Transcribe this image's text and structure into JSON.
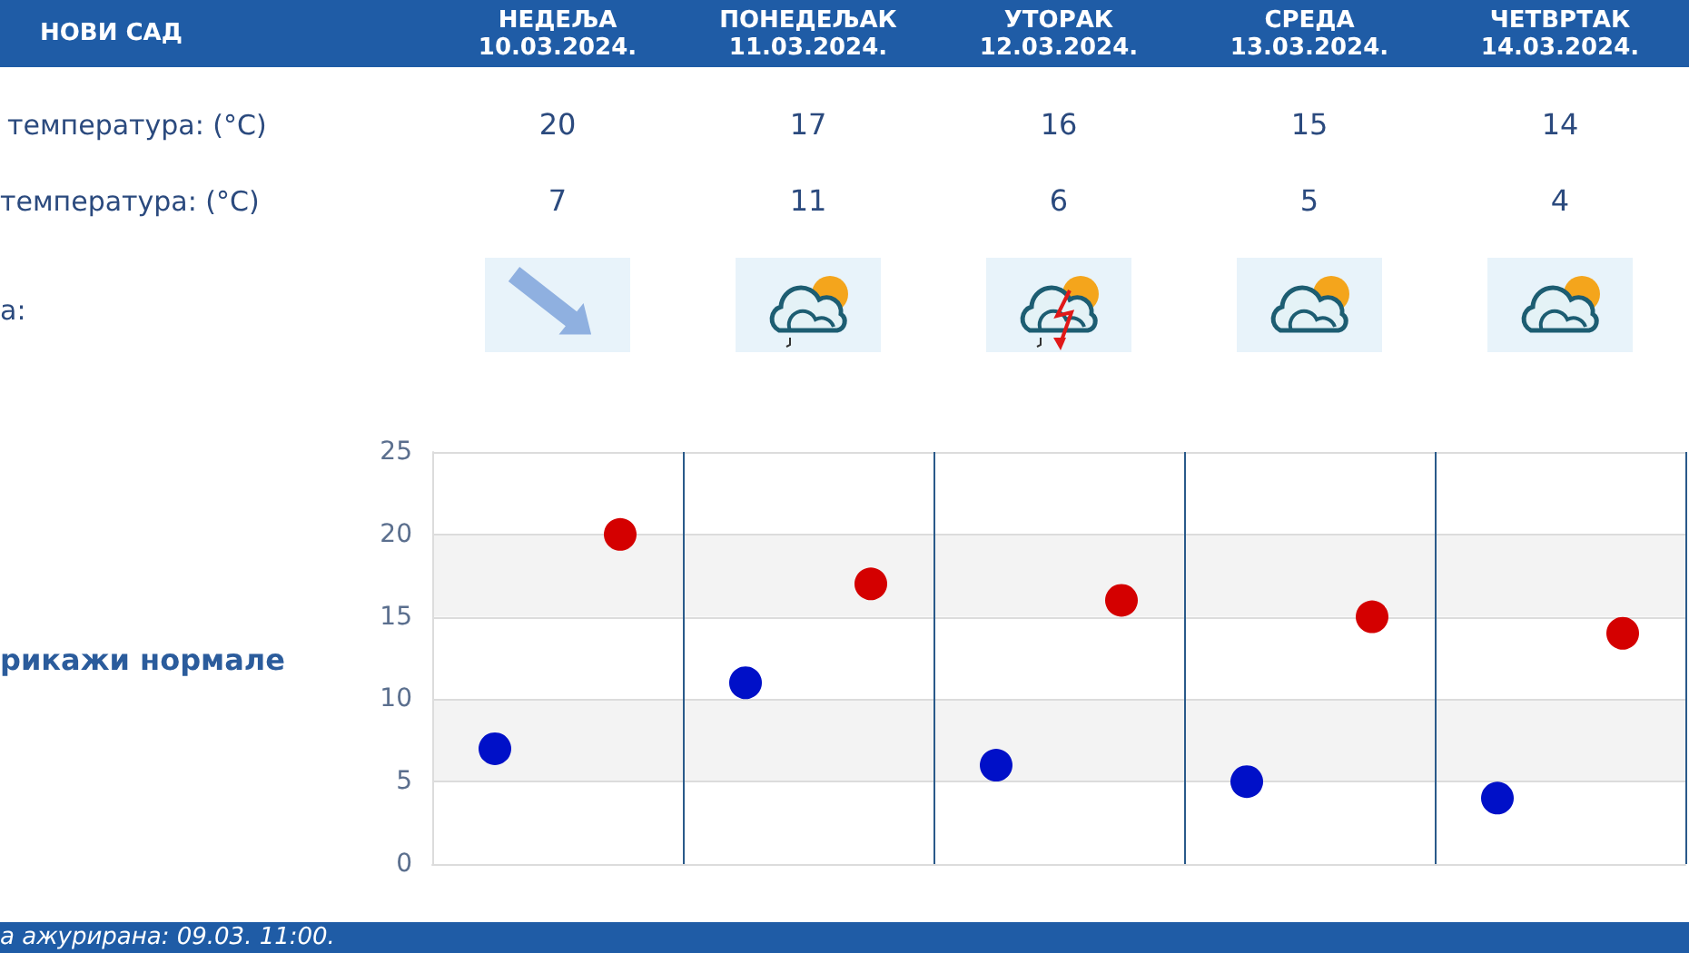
{
  "chart_data": {
    "type": "scatter",
    "title": "НОВИ САД",
    "categories": [
      null,
      null,
      null,
      null,
      null
    ],
    "series": [
      {
        "color": "#d40000",
        "values": [
          20,
          17,
          16,
          15,
          14
        ]
      },
      {
        "color": "#0010c8",
        "values": [
          7,
          11,
          6,
          5,
          4
        ]
      }
    ],
    "ylim": [
      0,
      25
    ],
    "yticks": [
      0,
      5,
      10,
      15,
      20,
      25
    ],
    "grid": true,
    "marker": "circle",
    "data_labels": true,
    "annotations": [
      "НЕДЕЉА\n10.03.2024.",
      "ПОНЕДЕЉАК\n11.03.2024.",
      "УТОРАК\n12.03.2024.",
      "СРЕДА\n13.03.2024.",
      "ЧЕТВРТАК\n14.03.2024.",
      "температура: (°C)",
      "температура: (°C)",
      "а:",
      "рикажи нормале",
      "а ажурирана: 09.03. 11:00."
    ]
  }
}
